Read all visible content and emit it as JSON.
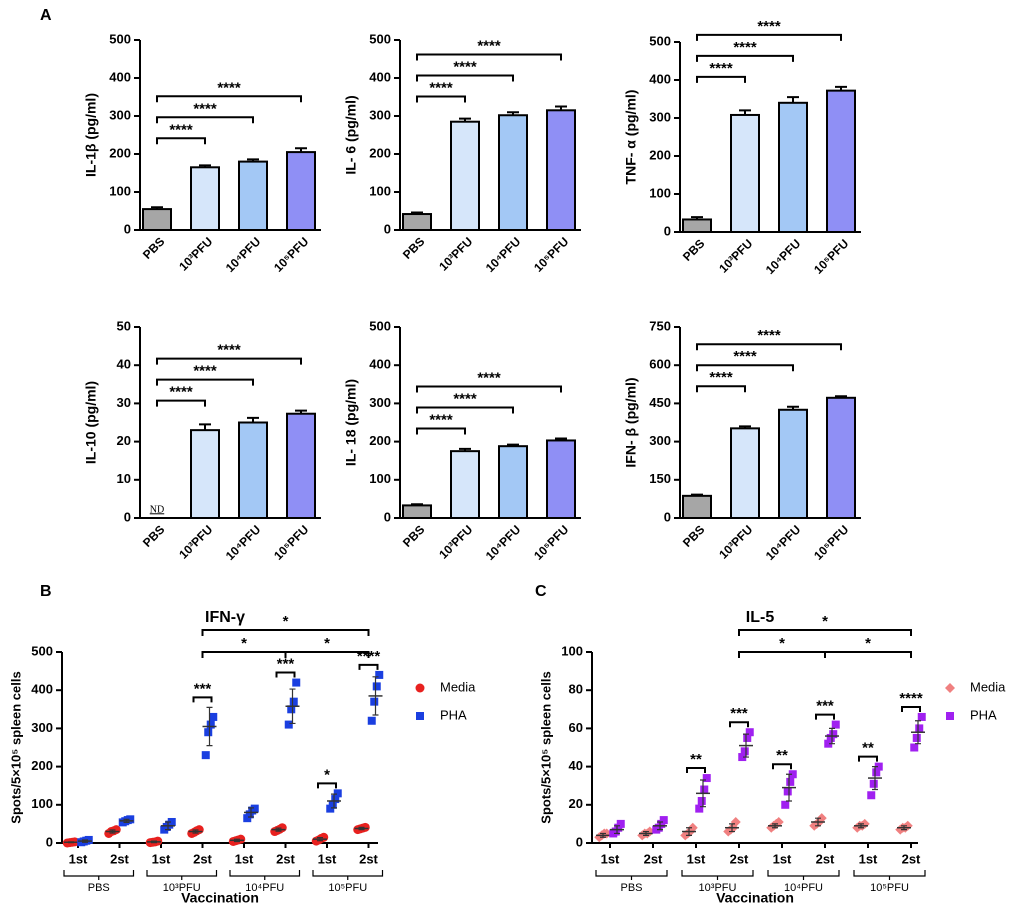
{
  "panel_labels": [
    "A",
    "B",
    "C"
  ],
  "chart_data": [
    {
      "type": "bar",
      "ylabel": "IL-1β (pg/ml)",
      "categories": [
        "PBS",
        "10³PFU",
        "10⁴PFU",
        "10⁵PFU"
      ],
      "values": [
        55,
        165,
        180,
        205
      ],
      "errors": [
        5,
        5,
        6,
        10
      ],
      "colors": [
        "#a6a6a6",
        "#d6e6fa",
        "#a3c8f5",
        "#8f8ff5"
      ],
      "ylim": [
        0,
        500
      ],
      "yticks": [
        0,
        100,
        200,
        300,
        400,
        500
      ],
      "comparisons": [
        {
          "groups": [
            0,
            1
          ],
          "label": "****"
        },
        {
          "groups": [
            0,
            2
          ],
          "label": "****"
        },
        {
          "groups": [
            0,
            3
          ],
          "label": "****"
        }
      ]
    },
    {
      "type": "bar",
      "ylabel": "IL- 6 (pg/ml)",
      "categories": [
        "PBS",
        "10³PFU",
        "10⁴PFU",
        "10⁵PFU"
      ],
      "values": [
        42,
        285,
        302,
        315
      ],
      "errors": [
        4,
        8,
        8,
        10
      ],
      "colors": [
        "#a6a6a6",
        "#d6e6fa",
        "#a3c8f5",
        "#8f8ff5"
      ],
      "ylim": [
        0,
        500
      ],
      "yticks": [
        0,
        100,
        200,
        300,
        400,
        500
      ],
      "comparisons": [
        {
          "groups": [
            0,
            1
          ],
          "label": "****"
        },
        {
          "groups": [
            0,
            2
          ],
          "label": "****"
        },
        {
          "groups": [
            0,
            3
          ],
          "label": "****"
        }
      ]
    },
    {
      "type": "bar",
      "ylabel": "TNF- α (pg/ml)",
      "categories": [
        "PBS",
        "10³PFU",
        "10⁴PFU",
        "10⁵PFU"
      ],
      "values": [
        33,
        308,
        340,
        372
      ],
      "errors": [
        6,
        12,
        15,
        10
      ],
      "colors": [
        "#a6a6a6",
        "#d6e6fa",
        "#a3c8f5",
        "#8f8ff5"
      ],
      "ylim": [
        0,
        500
      ],
      "yticks": [
        0,
        100,
        200,
        300,
        400,
        500
      ],
      "comparisons": [
        {
          "groups": [
            0,
            1
          ],
          "label": "****"
        },
        {
          "groups": [
            0,
            2
          ],
          "label": "****"
        },
        {
          "groups": [
            0,
            3
          ],
          "label": "****"
        }
      ]
    },
    {
      "type": "bar",
      "ylabel": "IL-10 (pg/ml)",
      "categories": [
        "PBS",
        "10³PFU",
        "10⁴PFU",
        "10⁵PFU"
      ],
      "values": [
        null,
        23,
        25,
        27.3
      ],
      "value_labels": [
        "ND",
        null,
        null,
        null
      ],
      "errors": [
        null,
        1.5,
        1.2,
        0.8
      ],
      "colors": [
        "#a6a6a6",
        "#d6e6fa",
        "#a3c8f5",
        "#8f8ff5"
      ],
      "ylim": [
        0,
        50
      ],
      "yticks": [
        0,
        10,
        20,
        30,
        40,
        50
      ],
      "comparisons": [
        {
          "groups": [
            0,
            1
          ],
          "label": "****"
        },
        {
          "groups": [
            0,
            2
          ],
          "label": "****"
        },
        {
          "groups": [
            0,
            3
          ],
          "label": "****"
        }
      ]
    },
    {
      "type": "bar",
      "ylabel": "IL- 18 (pg/ml)",
      "categories": [
        "PBS",
        "10³PFU",
        "10⁴PFU",
        "10⁵PFU"
      ],
      "values": [
        33,
        175,
        188,
        203
      ],
      "errors": [
        3,
        6,
        4,
        5
      ],
      "colors": [
        "#a6a6a6",
        "#d6e6fa",
        "#a3c8f5",
        "#8f8ff5"
      ],
      "ylim": [
        0,
        500
      ],
      "yticks": [
        0,
        100,
        200,
        300,
        400,
        500
      ],
      "comparisons": [
        {
          "groups": [
            0,
            1
          ],
          "label": "****"
        },
        {
          "groups": [
            0,
            2
          ],
          "label": "****"
        },
        {
          "groups": [
            0,
            3
          ],
          "label": "****"
        }
      ]
    },
    {
      "type": "bar",
      "ylabel": "IFN- β (pg/ml)",
      "categories": [
        "PBS",
        "10³PFU",
        "10⁴PFU",
        "10⁵PFU"
      ],
      "values": [
        87,
        352,
        425,
        472
      ],
      "errors": [
        5,
        8,
        12,
        6
      ],
      "colors": [
        "#a6a6a6",
        "#d6e6fa",
        "#a3c8f5",
        "#8f8ff5"
      ],
      "ylim": [
        0,
        750
      ],
      "yticks": [
        0,
        150,
        300,
        450,
        600,
        750
      ],
      "comparisons": [
        {
          "groups": [
            0,
            1
          ],
          "label": "****"
        },
        {
          "groups": [
            0,
            2
          ],
          "label": "****"
        },
        {
          "groups": [
            0,
            3
          ],
          "label": "****"
        }
      ]
    },
    {
      "type": "dot",
      "title": "IFN-γ",
      "ylabel": "Spots/5×10⁵ spleen cells",
      "xlabel": "Vaccination",
      "categories": [
        "1st",
        "2st",
        "1st",
        "2st",
        "1st",
        "2st",
        "1st",
        "2st"
      ],
      "x_groups": [
        "PBS",
        "10³PFU",
        "10⁴PFU",
        "10⁵PFU"
      ],
      "ylim": [
        0,
        500
      ],
      "yticks": [
        0,
        100,
        200,
        300,
        400,
        500
      ],
      "series": [
        {
          "name": "Media",
          "color": "#e8211f",
          "marker": "circle",
          "values": [
            2,
            30,
            3,
            30,
            7,
            35,
            10,
            38
          ],
          "errors": [
            1,
            4,
            2,
            4,
            3,
            4,
            4,
            3
          ],
          "points": [
            [
              0,
              1,
              2,
              3
            ],
            [
              25,
              30,
              32,
              35
            ],
            [
              1,
              2,
              3,
              5
            ],
            [
              25,
              28,
              32,
              35
            ],
            [
              4,
              6,
              8,
              10
            ],
            [
              30,
              33,
              36,
              40
            ],
            [
              5,
              8,
              12,
              15
            ],
            [
              35,
              37,
              39,
              41
            ]
          ]
        },
        {
          "name": "PHA",
          "color": "#1a3fe0",
          "marker": "square",
          "values": [
            5,
            58,
            45,
            305,
            80,
            358,
            110,
            385
          ],
          "errors": [
            3,
            4,
            10,
            50,
            12,
            45,
            18,
            50
          ],
          "points": [
            [
              2,
              4,
              6,
              8
            ],
            [
              54,
              57,
              60,
              62
            ],
            [
              35,
              42,
              48,
              55
            ],
            [
              230,
              290,
              310,
              330
            ],
            [
              65,
              75,
              85,
              90
            ],
            [
              310,
              350,
              370,
              420
            ],
            [
              90,
              100,
              115,
              130
            ],
            [
              320,
              370,
              410,
              440
            ]
          ]
        }
      ],
      "comparisons": [
        {
          "groups": [
            3,
            3
          ],
          "label": "***"
        },
        {
          "groups": [
            5,
            5
          ],
          "label": "***"
        },
        {
          "groups": [
            6,
            6
          ],
          "label": "*"
        },
        {
          "groups": [
            7,
            7
          ],
          "label": "****"
        },
        {
          "groups": [
            3,
            5
          ],
          "label": "*"
        },
        {
          "groups": [
            5,
            7
          ],
          "label": "*"
        },
        {
          "groups": [
            3,
            7
          ],
          "label": "*"
        }
      ]
    },
    {
      "type": "dot",
      "title": "IL-5",
      "ylabel": "Spots/5×10⁵ spleen cells",
      "xlabel": "Vaccination",
      "categories": [
        "1st",
        "2st",
        "1st",
        "2st",
        "1st",
        "2st",
        "1st",
        "2st"
      ],
      "x_groups": [
        "PBS",
        "10³PFU",
        "10⁴PFU",
        "10⁵PFU"
      ],
      "ylim": [
        0,
        100
      ],
      "yticks": [
        0,
        20,
        40,
        60,
        80,
        100
      ],
      "series": [
        {
          "name": "Media",
          "color": "#f08080",
          "marker": "diamond",
          "values": [
            4,
            5,
            6,
            8,
            9,
            11,
            9,
            8
          ],
          "errors": [
            1,
            1,
            2,
            2,
            1,
            2,
            1,
            1
          ],
          "points": [
            [
              3,
              4,
              5,
              5
            ],
            [
              4,
              5,
              5,
              6
            ],
            [
              4,
              5,
              6,
              8
            ],
            [
              6,
              7,
              8,
              11
            ],
            [
              8,
              9,
              10,
              11
            ],
            [
              9,
              10,
              11,
              13
            ],
            [
              8,
              9,
              9,
              10
            ],
            [
              7,
              8,
              8,
              9
            ]
          ]
        },
        {
          "name": "PHA",
          "color": "#a020f0",
          "marker": "square",
          "values": [
            7,
            9,
            26,
            51,
            29,
            56,
            34,
            58
          ],
          "errors": [
            2,
            2,
            7,
            6,
            7,
            4,
            6,
            6
          ],
          "points": [
            [
              5,
              6,
              8,
              10
            ],
            [
              7,
              8,
              10,
              12
            ],
            [
              18,
              22,
              28,
              34
            ],
            [
              45,
              48,
              55,
              58
            ],
            [
              20,
              27,
              32,
              36
            ],
            [
              52,
              55,
              57,
              62
            ],
            [
              25,
              31,
              37,
              40
            ],
            [
              50,
              55,
              60,
              66
            ]
          ]
        }
      ],
      "comparisons": [
        {
          "groups": [
            2,
            2
          ],
          "label": "**"
        },
        {
          "groups": [
            3,
            3
          ],
          "label": "***"
        },
        {
          "groups": [
            4,
            4
          ],
          "label": "**"
        },
        {
          "groups": [
            5,
            5
          ],
          "label": "***"
        },
        {
          "groups": [
            6,
            6
          ],
          "label": "**"
        },
        {
          "groups": [
            7,
            7
          ],
          "label": "****"
        },
        {
          "groups": [
            3,
            5
          ],
          "label": "*"
        },
        {
          "groups": [
            5,
            7
          ],
          "label": "*"
        },
        {
          "groups": [
            3,
            7
          ],
          "label": "*"
        }
      ]
    }
  ]
}
